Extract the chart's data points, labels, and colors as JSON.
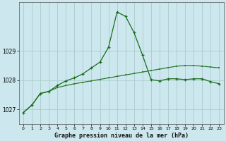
{
  "background_color": "#cce8ee",
  "grid_color": "#aacccc",
  "line_main_color": "#1a6b1a",
  "line_trend_color": "#2d7a2d",
  "title": "Graphe pression niveau de la mer (hPa)",
  "ylim": [
    1026.5,
    1030.65
  ],
  "xlim": [
    -0.5,
    23.5
  ],
  "yticks": [
    1027,
    1028,
    1029
  ],
  "xticks": [
    0,
    1,
    2,
    3,
    4,
    5,
    6,
    7,
    8,
    9,
    10,
    11,
    12,
    13,
    14,
    15,
    16,
    17,
    18,
    19,
    20,
    21,
    22,
    23
  ],
  "xtick_labels": [
    "0",
    "1",
    "2",
    "3",
    "4",
    "5",
    "6",
    "7",
    "8",
    "9",
    "10",
    "11",
    "12",
    "13",
    "14",
    "15",
    "16",
    "17",
    "18",
    "19",
    "20",
    "21",
    "22",
    "23"
  ],
  "trend_x": [
    0,
    1,
    2,
    3,
    4,
    5,
    6,
    7,
    8,
    9,
    10,
    11,
    12,
    13,
    14,
    15,
    16,
    17,
    18,
    19,
    20,
    21,
    22,
    23
  ],
  "trend_y": [
    1026.9,
    1027.15,
    1027.55,
    1027.62,
    1027.75,
    1027.82,
    1027.88,
    1027.93,
    1027.98,
    1028.03,
    1028.08,
    1028.13,
    1028.18,
    1028.23,
    1028.28,
    1028.33,
    1028.38,
    1028.43,
    1028.48,
    1028.5,
    1028.5,
    1028.48,
    1028.45,
    1028.42
  ],
  "main_x": [
    0,
    1,
    2,
    3,
    4,
    5,
    6,
    7,
    8,
    9,
    10,
    11,
    12,
    13,
    14,
    15,
    16,
    17,
    18,
    19,
    20,
    21,
    22,
    23
  ],
  "main_y": [
    1026.9,
    1027.15,
    1027.55,
    1027.62,
    1027.82,
    1027.98,
    1028.08,
    1028.22,
    1028.42,
    1028.62,
    1029.12,
    1030.32,
    1030.18,
    1029.62,
    1028.85,
    1028.02,
    1027.98,
    1028.05,
    1028.05,
    1028.02,
    1028.05,
    1028.05,
    1027.95,
    1027.88
  ]
}
